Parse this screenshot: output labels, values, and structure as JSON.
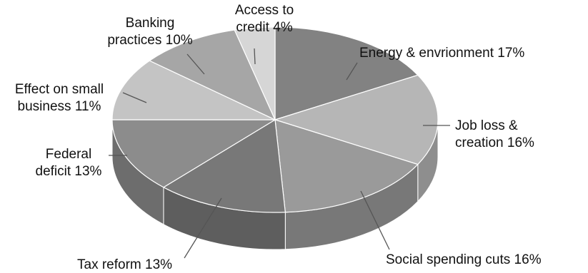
{
  "chart_data": {
    "type": "pie",
    "title": "",
    "style": "3d",
    "legend": "none",
    "slices": [
      {
        "name": "Energy & envrionment",
        "value": 17,
        "label": "Energy & envrionment 17%",
        "color": "#828282"
      },
      {
        "name": "Job loss & creation",
        "value": 16,
        "label": "Job loss & creation 16%",
        "color": "#b6b6b6"
      },
      {
        "name": "Social spending cuts",
        "value": 16,
        "label": "Social spending cuts 16%",
        "color": "#9a9a9a"
      },
      {
        "name": "Tax reform",
        "value": 13,
        "label": "Tax reform 13%",
        "color": "#787878"
      },
      {
        "name": "Federal deficit",
        "value": 13,
        "label": "Federal deficit 13%",
        "color": "#8c8c8c"
      },
      {
        "name": "Effect on small business",
        "value": 11,
        "label": "Effect on small business 11%",
        "color": "#c4c4c4"
      },
      {
        "name": "Banking practices",
        "value": 10,
        "label": "Banking practices 10%",
        "color": "#a6a6a6"
      },
      {
        "name": "Access to credit",
        "value": 4,
        "label": "Access to credit 4%",
        "color": "#d6d6d6"
      }
    ]
  }
}
